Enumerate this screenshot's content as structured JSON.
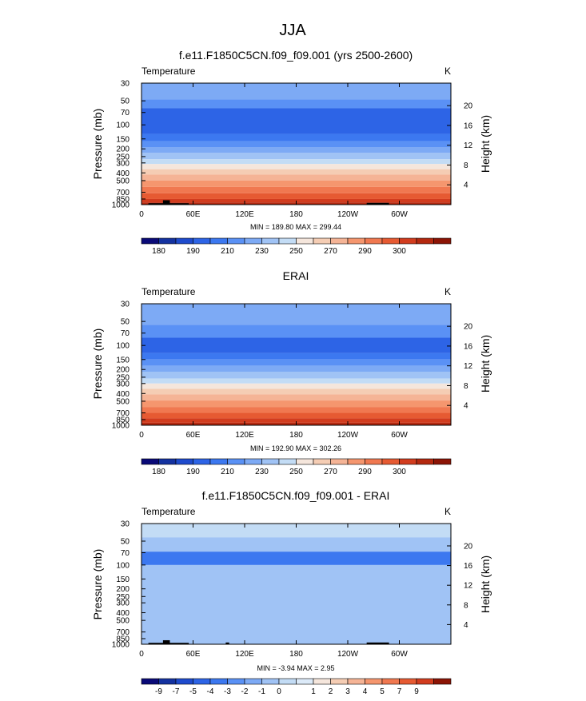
{
  "figure": {
    "title": "JJA"
  },
  "colorbar_abs": {
    "colors": [
      "#0a0a78",
      "#1432a0",
      "#1e4bcd",
      "#2d64e6",
      "#3c78f0",
      "#5a91f5",
      "#7daaf5",
      "#a0c3f5",
      "#c3dcf5",
      "#f5e6dc",
      "#f5cdb4",
      "#f5b496",
      "#f5966e",
      "#f07850",
      "#e65a32",
      "#d23c1e",
      "#b4280f",
      "#8c1405"
    ],
    "labels": [
      "180",
      "190",
      "210",
      "230",
      "250",
      "270",
      "290",
      "300"
    ],
    "label_boundaries": [
      1,
      3,
      5,
      7,
      9,
      11,
      13,
      15
    ]
  },
  "colorbar_diff": {
    "colors": [
      "#0a0a78",
      "#1432a0",
      "#1e4bcd",
      "#2d64e6",
      "#3c78f0",
      "#5a91f5",
      "#7daaf5",
      "#a0c3f5",
      "#c3dcf5",
      "#dceaf8",
      "#f5e6dc",
      "#f5cdb4",
      "#f5b496",
      "#f5966e",
      "#f07850",
      "#e65a32",
      "#d23c1e",
      "#8c1405"
    ],
    "labels": [
      "-9",
      "-7",
      "-5",
      "-4",
      "-3",
      "-2",
      "-1",
      "0",
      "1",
      "2",
      "3",
      "4",
      "5",
      "7",
      "9"
    ],
    "label_boundaries": [
      1,
      2,
      3,
      4,
      5,
      6,
      7,
      8,
      10,
      11,
      12,
      13,
      14,
      15,
      16
    ]
  },
  "chart_data": [
    {
      "type": "heatmap",
      "title": "f.e11.F1850C5CN.f09_f09.001 (yrs 2500-2600)",
      "left_label": "Temperature",
      "right_label": "K",
      "ylabel": "Pressure (mb)",
      "ylabel_right": "Height (km)",
      "x_ticks": [
        "0",
        "60E",
        "120E",
        "180",
        "120W",
        "60W"
      ],
      "x_tick_values": [
        0,
        60,
        120,
        180,
        240,
        300
      ],
      "xlim": [
        0,
        360
      ],
      "y_ticks": [
        "30",
        "50",
        "70",
        "100",
        "150",
        "200",
        "250",
        "300",
        "400",
        "500",
        "700",
        "850",
        "1000"
      ],
      "y_ticks_right": [
        "20",
        "16",
        "12",
        "8",
        "4"
      ],
      "ylim": [
        1000,
        30
      ],
      "min_max": "MIN = 189.80  MAX = 299.44",
      "bands": [
        {
          "p_top": 30,
          "p_bot": 48,
          "color": "#7daaf5"
        },
        {
          "p_top": 48,
          "p_bot": 62,
          "color": "#5a91f5"
        },
        {
          "p_top": 62,
          "p_bot": 130,
          "color": "#2d64e6"
        },
        {
          "p_top": 130,
          "p_bot": 160,
          "color": "#3c78f0"
        },
        {
          "p_top": 160,
          "p_bot": 190,
          "color": "#5a91f5"
        },
        {
          "p_top": 190,
          "p_bot": 225,
          "color": "#7daaf5"
        },
        {
          "p_top": 225,
          "p_bot": 270,
          "color": "#a0c3f5"
        },
        {
          "p_top": 270,
          "p_bot": 310,
          "color": "#c3dcf5"
        },
        {
          "p_top": 310,
          "p_bot": 360,
          "color": "#f5e6dc"
        },
        {
          "p_top": 360,
          "p_bot": 420,
          "color": "#f5cdb4"
        },
        {
          "p_top": 420,
          "p_bot": 500,
          "color": "#f5b496"
        },
        {
          "p_top": 500,
          "p_bot": 600,
          "color": "#f5966e"
        },
        {
          "p_top": 600,
          "p_bot": 720,
          "color": "#f07850"
        },
        {
          "p_top": 720,
          "p_bot": 850,
          "color": "#e65a32"
        },
        {
          "p_top": 850,
          "p_bot": 940,
          "color": "#d23c1e"
        },
        {
          "p_top": 940,
          "p_bot": 1000,
          "color": "#b4280f"
        }
      ],
      "terrain": [
        {
          "lon0": 8,
          "lon1": 55,
          "p_top": 960
        },
        {
          "lon0": 25,
          "lon1": 33,
          "p_top": 880
        },
        {
          "lon0": 262,
          "lon1": 288,
          "p_top": 950
        }
      ]
    },
    {
      "type": "heatmap",
      "title": "ERAI",
      "left_label": "Temperature",
      "right_label": "K",
      "ylabel": "Pressure (mb)",
      "ylabel_right": "Height (km)",
      "x_ticks": [
        "0",
        "60E",
        "120E",
        "180",
        "120W",
        "60W"
      ],
      "x_tick_values": [
        0,
        60,
        120,
        180,
        240,
        300
      ],
      "xlim": [
        0,
        360
      ],
      "y_ticks": [
        "30",
        "50",
        "70",
        "100",
        "150",
        "200",
        "250",
        "300",
        "400",
        "500",
        "700",
        "850",
        "1000"
      ],
      "y_ticks_right": [
        "20",
        "16",
        "12",
        "8",
        "4"
      ],
      "ylim": [
        1000,
        30
      ],
      "min_max": "MIN = 192.90  MAX = 302.26",
      "bands": [
        {
          "p_top": 30,
          "p_bot": 55,
          "color": "#7daaf5"
        },
        {
          "p_top": 55,
          "p_bot": 80,
          "color": "#5a91f5"
        },
        {
          "p_top": 80,
          "p_bot": 125,
          "color": "#2d64e6"
        },
        {
          "p_top": 125,
          "p_bot": 150,
          "color": "#3c78f0"
        },
        {
          "p_top": 150,
          "p_bot": 180,
          "color": "#5a91f5"
        },
        {
          "p_top": 180,
          "p_bot": 215,
          "color": "#7daaf5"
        },
        {
          "p_top": 215,
          "p_bot": 260,
          "color": "#a0c3f5"
        },
        {
          "p_top": 260,
          "p_bot": 300,
          "color": "#c3dcf5"
        },
        {
          "p_top": 300,
          "p_bot": 350,
          "color": "#f5e6dc"
        },
        {
          "p_top": 350,
          "p_bot": 410,
          "color": "#f5cdb4"
        },
        {
          "p_top": 410,
          "p_bot": 490,
          "color": "#f5b496"
        },
        {
          "p_top": 490,
          "p_bot": 590,
          "color": "#f5966e"
        },
        {
          "p_top": 590,
          "p_bot": 700,
          "color": "#f07850"
        },
        {
          "p_top": 700,
          "p_bot": 820,
          "color": "#e65a32"
        },
        {
          "p_top": 820,
          "p_bot": 930,
          "color": "#d23c1e"
        },
        {
          "p_top": 930,
          "p_bot": 1000,
          "color": "#b4280f"
        }
      ],
      "terrain": []
    },
    {
      "type": "heatmap",
      "title": "f.e11.F1850C5CN.f09_f09.001 - ERAI",
      "left_label": "Temperature",
      "right_label": "K",
      "ylabel": "Pressure (mb)",
      "ylabel_right": "Height (km)",
      "x_ticks": [
        "0",
        "60E",
        "120E",
        "180",
        "120W",
        "60W"
      ],
      "x_tick_values": [
        0,
        60,
        120,
        180,
        240,
        300
      ],
      "xlim": [
        0,
        360
      ],
      "y_ticks": [
        "30",
        "50",
        "70",
        "100",
        "150",
        "200",
        "250",
        "300",
        "400",
        "500",
        "700",
        "850",
        "1000"
      ],
      "y_ticks_right": [
        "20",
        "16",
        "12",
        "8",
        "4"
      ],
      "ylim": [
        1000,
        30
      ],
      "min_max": "MIN = -3.94  MAX =  2.95",
      "background": "#a0c3f5",
      "bands": [
        {
          "p_top": 30,
          "p_bot": 45,
          "color": "#c3dcf5"
        },
        {
          "p_top": 45,
          "p_bot": 68,
          "color": "#a0c3f5"
        },
        {
          "p_top": 68,
          "p_bot": 100,
          "color": "#3c78f0"
        },
        {
          "p_top": 100,
          "p_bot": 1000,
          "color": "#a0c3f5"
        }
      ],
      "terrain": [
        {
          "lon0": 8,
          "lon1": 55,
          "p_top": 960
        },
        {
          "lon0": 25,
          "lon1": 33,
          "p_top": 890
        },
        {
          "lon0": 98,
          "lon1": 102,
          "p_top": 950
        },
        {
          "lon0": 262,
          "lon1": 288,
          "p_top": 950
        }
      ]
    }
  ]
}
